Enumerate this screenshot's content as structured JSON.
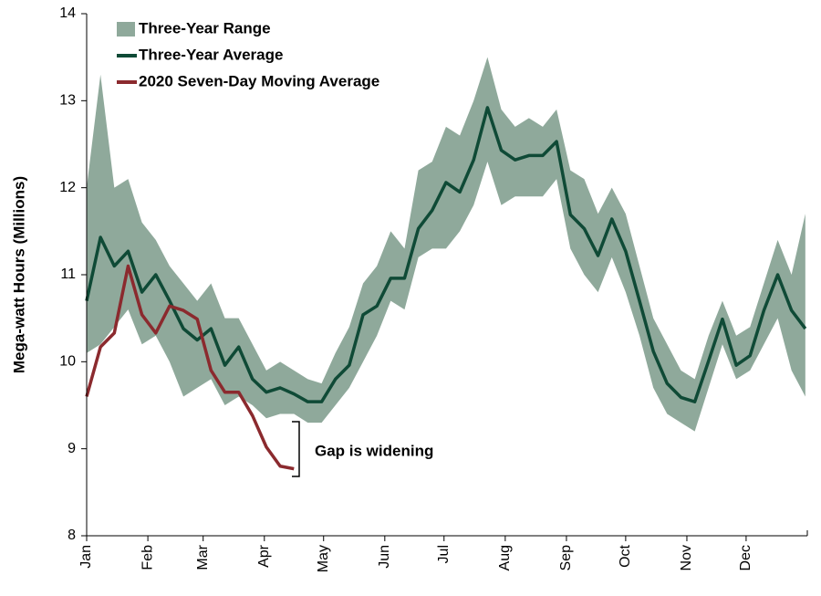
{
  "chart_data": {
    "type": "line",
    "y_label": "Mega-watt Hours (Millions)",
    "annotation": "Gap is widening",
    "xlim": [
      0,
      365
    ],
    "xticks": [
      {
        "value": 0,
        "label": "Jan"
      },
      {
        "value": 31,
        "label": "Feb"
      },
      {
        "value": 59,
        "label": "Mar"
      },
      {
        "value": 90,
        "label": "Apr"
      },
      {
        "value": 120,
        "label": "May"
      },
      {
        "value": 151,
        "label": "Jun"
      },
      {
        "value": 181,
        "label": "Jul"
      },
      {
        "value": 212,
        "label": "Aug"
      },
      {
        "value": 243,
        "label": "Sep"
      },
      {
        "value": 273,
        "label": "Oct"
      },
      {
        "value": 304,
        "label": "Nov"
      },
      {
        "value": 334,
        "label": "Dec"
      }
    ],
    "ylim": [
      8,
      14
    ],
    "yticks": [
      8,
      9,
      10,
      11,
      12,
      13,
      14
    ],
    "x": [
      0,
      7,
      14,
      21,
      28,
      35,
      42,
      49,
      56,
      63,
      70,
      77,
      84,
      91,
      98,
      105,
      112,
      119,
      126,
      133,
      140,
      147,
      154,
      161,
      168,
      175,
      182,
      189,
      196,
      203,
      210,
      217,
      224,
      231,
      238,
      245,
      252,
      259,
      266,
      273,
      280,
      287,
      294,
      301,
      308,
      315,
      322,
      329,
      336,
      343,
      350,
      357,
      364
    ],
    "series": [
      {
        "name": "Three-Year Range",
        "color": "#8fa99b",
        "upper": [
          12.0,
          13.3,
          12.0,
          12.1,
          11.6,
          11.4,
          11.1,
          10.9,
          10.7,
          10.9,
          10.5,
          10.5,
          10.2,
          9.9,
          10.0,
          9.9,
          9.8,
          9.75,
          10.1,
          10.4,
          10.9,
          11.1,
          11.5,
          11.3,
          12.2,
          12.3,
          12.7,
          12.6,
          13.0,
          13.5,
          12.9,
          12.7,
          12.8,
          12.7,
          12.9,
          12.2,
          12.1,
          11.7,
          12.0,
          11.7,
          11.1,
          10.5,
          10.2,
          9.9,
          9.8,
          10.3,
          10.7,
          10.3,
          10.4,
          10.9,
          11.4,
          11.0,
          11.7
        ],
        "lower": [
          10.1,
          10.2,
          10.4,
          10.6,
          10.2,
          10.3,
          10.0,
          9.6,
          9.7,
          9.8,
          9.5,
          9.6,
          9.5,
          9.35,
          9.4,
          9.4,
          9.3,
          9.3,
          9.5,
          9.7,
          10.0,
          10.3,
          10.7,
          10.6,
          11.2,
          11.3,
          11.3,
          11.5,
          11.8,
          12.3,
          11.8,
          11.9,
          11.9,
          11.9,
          12.1,
          11.3,
          11.0,
          10.8,
          11.2,
          10.8,
          10.3,
          9.7,
          9.4,
          9.3,
          9.2,
          9.7,
          10.2,
          9.8,
          9.9,
          10.2,
          10.5,
          9.9,
          9.6
        ]
      },
      {
        "name": "Three-Year Average",
        "color": "#0f4a36",
        "values": [
          10.7,
          11.43,
          11.1,
          11.27,
          10.8,
          11.0,
          10.7,
          10.38,
          10.25,
          10.38,
          9.96,
          10.17,
          9.8,
          9.65,
          9.7,
          9.63,
          9.54,
          9.54,
          9.8,
          9.96,
          10.54,
          10.64,
          10.96,
          10.96,
          11.53,
          11.74,
          12.06,
          11.95,
          12.32,
          12.92,
          12.43,
          12.32,
          12.37,
          12.37,
          12.53,
          11.69,
          11.53,
          11.22,
          11.64,
          11.27,
          10.7,
          10.12,
          9.75,
          9.59,
          9.54,
          10.01,
          10.49,
          9.96,
          10.07,
          10.59,
          11.0,
          10.59,
          10.38
        ]
      },
      {
        "name": "2020 Seven-Day Moving Average",
        "color": "#8b2a2e",
        "values": [
          9.6,
          10.17,
          10.33,
          11.1,
          10.54,
          10.33,
          10.64,
          10.59,
          10.49,
          9.9,
          9.65,
          9.65,
          9.38,
          9.02,
          8.8,
          8.77,
          null,
          null,
          null,
          null,
          null,
          null,
          null,
          null,
          null,
          null,
          null,
          null,
          null,
          null,
          null,
          null,
          null,
          null,
          null,
          null,
          null,
          null,
          null,
          null,
          null,
          null,
          null,
          null,
          null,
          null,
          null,
          null,
          null,
          null,
          null,
          null,
          null
        ]
      }
    ]
  }
}
